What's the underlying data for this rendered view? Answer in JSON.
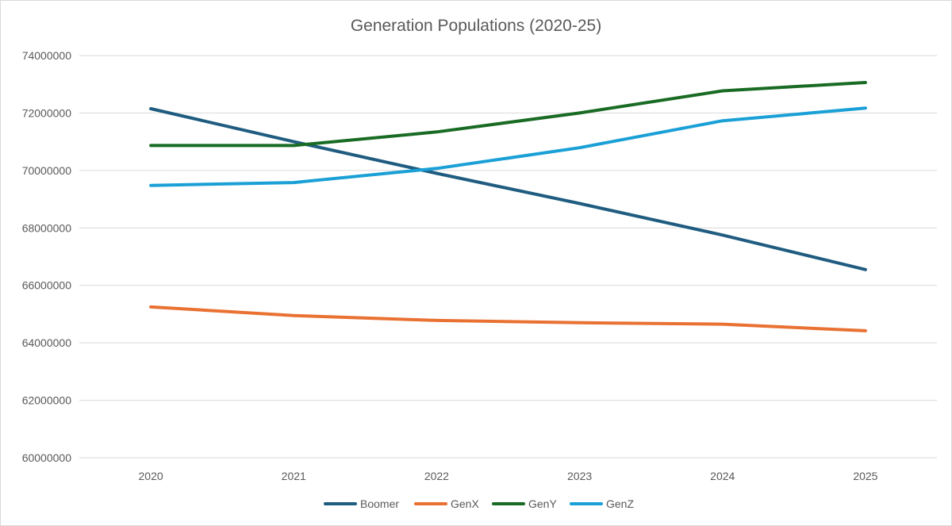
{
  "chart_data": {
    "type": "line",
    "title": "Generation Populations (2020-25)",
    "xlabel": "",
    "ylabel": "",
    "categories": [
      "2020",
      "2021",
      "2022",
      "2023",
      "2024",
      "2025"
    ],
    "ylim": [
      60000000,
      74000000
    ],
    "y_ticks": [
      60000000,
      62000000,
      64000000,
      66000000,
      68000000,
      70000000,
      72000000,
      74000000
    ],
    "grid": true,
    "legend_position": "bottom",
    "series": [
      {
        "name": "Boomer",
        "color": "#1f5c80",
        "values": [
          72150000,
          71000000,
          69900000,
          68850000,
          67750000,
          66550000
        ]
      },
      {
        "name": "GenX",
        "color": "#e97132",
        "values": [
          65250000,
          64950000,
          64780000,
          64700000,
          64650000,
          64420000
        ]
      },
      {
        "name": "GenY",
        "color": "#196b24",
        "values": [
          70870000,
          70870000,
          71340000,
          72000000,
          72770000,
          73060000
        ]
      },
      {
        "name": "GenZ",
        "color": "#1aa0d6",
        "values": [
          69480000,
          69580000,
          70070000,
          70790000,
          71730000,
          72170000
        ]
      }
    ]
  }
}
